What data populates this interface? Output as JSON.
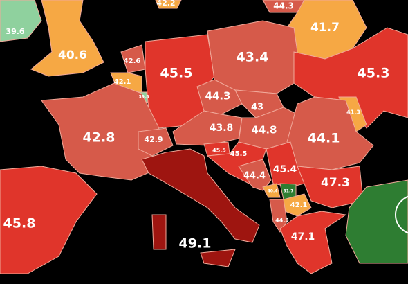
{
  "regions": [
    {
      "value": 39.6,
      "color": "#8fd19e"
    },
    {
      "value": 40.6,
      "color": "#f6a844"
    },
    {
      "value": 42.2,
      "color": "#f6a844"
    },
    {
      "value": 44.3,
      "color": "#d65a4a"
    },
    {
      "value": 41.7,
      "color": "#f6a844"
    },
    {
      "value": 42.6,
      "color": "#d65a4a"
    },
    {
      "value": 45.5,
      "color": "#e0352b"
    },
    {
      "value": 43.4,
      "color": "#d65a4a"
    },
    {
      "value": 45.3,
      "color": "#e0352b"
    },
    {
      "value": 42.1,
      "color": "#f6a844"
    },
    {
      "value": 39.8,
      "color": "#8fd19e"
    },
    {
      "value": 44.3,
      "color": "#d65a4a"
    },
    {
      "value": 43,
      "color": "#d65a4a"
    },
    {
      "value": 41.3,
      "color": "#f6a844"
    },
    {
      "value": 42.8,
      "color": "#d65a4a"
    },
    {
      "value": 43.8,
      "color": "#d65a4a"
    },
    {
      "value": 44.8,
      "color": "#d65a4a"
    },
    {
      "value": 44.1,
      "color": "#d65a4a"
    },
    {
      "value": 42.9,
      "color": "#d65a4a"
    },
    {
      "value": 45.5,
      "color": "#e0352b"
    },
    {
      "value": 45.5,
      "color": "#e0352b"
    },
    {
      "value": 45.4,
      "color": "#e0352b"
    },
    {
      "value": 44.4,
      "color": "#d65a4a"
    },
    {
      "value": 47.3,
      "color": "#e0352b"
    },
    {
      "value": 40.4,
      "color": "#f6a844"
    },
    {
      "value": 31.7,
      "color": "#2e7d32"
    },
    {
      "value": 42.1,
      "color": "#f6a844"
    },
    {
      "value": 44.3,
      "color": "#d65a4a"
    },
    {
      "value": 45.8,
      "color": "#e0352b"
    },
    {
      "value": 49.1,
      "color": "#9e1510"
    },
    {
      "value": 47.1,
      "color": "#e0352b"
    }
  ]
}
